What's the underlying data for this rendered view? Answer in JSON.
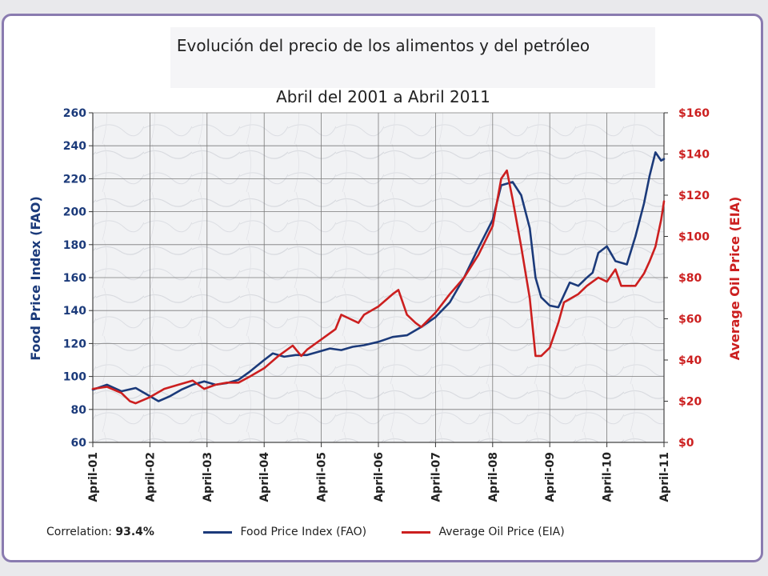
{
  "title": {
    "line1": "Evolución del precio de los alimentos y del petróleo",
    "line2": "Abril del 2001 a Abril 2011"
  },
  "colors": {
    "food": "#1b3a7a",
    "oil": "#cc1f1f",
    "grid": "#7a7a7a",
    "frame": "#8a7bb0"
  },
  "footer": {
    "correlation_label": "Correlation:",
    "correlation_value": "93.4%"
  },
  "chart_data": {
    "type": "line",
    "x_tick_labels": [
      "April-01",
      "April-02",
      "April-03",
      "April-04",
      "April-05",
      "April-06",
      "April-07",
      "April-08",
      "April-09",
      "April-10",
      "April-11"
    ],
    "x_range": [
      2001.25,
      2011.25
    ],
    "ylabel_left": "Food Price Index (FAO)",
    "ylabel_right": "Average Oil Price (EIA)",
    "ylim_left": [
      60,
      260
    ],
    "ylim_right": [
      0,
      160
    ],
    "yticks_left": [
      "60",
      "80",
      "100",
      "120",
      "140",
      "160",
      "180",
      "200",
      "220",
      "240",
      "260"
    ],
    "yticks_right": [
      "$0",
      "$20",
      "$40",
      "$60",
      "$80",
      "$100",
      "$120",
      "$140",
      "$160"
    ],
    "grid": true,
    "legend_position": "bottom",
    "series": [
      {
        "name": "Food Price Index (FAO)",
        "axis": "left",
        "points": [
          [
            2001.25,
            92
          ],
          [
            2001.5,
            95
          ],
          [
            2001.75,
            91
          ],
          [
            2002.0,
            93
          ],
          [
            2002.25,
            88
          ],
          [
            2002.4,
            85
          ],
          [
            2002.6,
            88
          ],
          [
            2002.8,
            92
          ],
          [
            2003.0,
            95
          ],
          [
            2003.2,
            97
          ],
          [
            2003.4,
            95
          ],
          [
            2003.6,
            96
          ],
          [
            2003.8,
            98
          ],
          [
            2004.0,
            103
          ],
          [
            2004.25,
            110
          ],
          [
            2004.4,
            114
          ],
          [
            2004.6,
            112
          ],
          [
            2004.8,
            113
          ],
          [
            2005.0,
            113
          ],
          [
            2005.2,
            115
          ],
          [
            2005.4,
            117
          ],
          [
            2005.6,
            116
          ],
          [
            2005.8,
            118
          ],
          [
            2006.0,
            119
          ],
          [
            2006.25,
            121
          ],
          [
            2006.5,
            124
          ],
          [
            2006.75,
            125
          ],
          [
            2007.0,
            130
          ],
          [
            2007.25,
            136
          ],
          [
            2007.5,
            145
          ],
          [
            2007.75,
            160
          ],
          [
            2008.0,
            178
          ],
          [
            2008.25,
            195
          ],
          [
            2008.4,
            216
          ],
          [
            2008.6,
            218
          ],
          [
            2008.75,
            210
          ],
          [
            2008.9,
            190
          ],
          [
            2009.0,
            160
          ],
          [
            2009.1,
            148
          ],
          [
            2009.25,
            143
          ],
          [
            2009.4,
            142
          ],
          [
            2009.6,
            157
          ],
          [
            2009.75,
            155
          ],
          [
            2009.9,
            160
          ],
          [
            2010.0,
            163
          ],
          [
            2010.1,
            175
          ],
          [
            2010.25,
            179
          ],
          [
            2010.4,
            170
          ],
          [
            2010.6,
            168
          ],
          [
            2010.75,
            185
          ],
          [
            2010.9,
            205
          ],
          [
            2011.0,
            222
          ],
          [
            2011.1,
            236
          ],
          [
            2011.2,
            231
          ],
          [
            2011.25,
            232
          ]
        ]
      },
      {
        "name": "Average Oil Price (EIA)",
        "axis": "right",
        "points": [
          [
            2001.25,
            26
          ],
          [
            2001.5,
            27
          ],
          [
            2001.75,
            24
          ],
          [
            2001.9,
            20
          ],
          [
            2002.0,
            19
          ],
          [
            2002.25,
            22
          ],
          [
            2002.5,
            26
          ],
          [
            2002.75,
            28
          ],
          [
            2003.0,
            30
          ],
          [
            2003.2,
            26
          ],
          [
            2003.4,
            28
          ],
          [
            2003.6,
            29
          ],
          [
            2003.8,
            29
          ],
          [
            2004.0,
            32
          ],
          [
            2004.25,
            36
          ],
          [
            2004.5,
            42
          ],
          [
            2004.75,
            47
          ],
          [
            2004.9,
            42
          ],
          [
            2005.0,
            45
          ],
          [
            2005.25,
            50
          ],
          [
            2005.5,
            55
          ],
          [
            2005.6,
            62
          ],
          [
            2005.75,
            60
          ],
          [
            2005.9,
            58
          ],
          [
            2006.0,
            62
          ],
          [
            2006.25,
            66
          ],
          [
            2006.5,
            72
          ],
          [
            2006.6,
            74
          ],
          [
            2006.75,
            62
          ],
          [
            2006.9,
            58
          ],
          [
            2007.0,
            56
          ],
          [
            2007.25,
            63
          ],
          [
            2007.5,
            72
          ],
          [
            2007.75,
            80
          ],
          [
            2008.0,
            91
          ],
          [
            2008.25,
            105
          ],
          [
            2008.4,
            128
          ],
          [
            2008.5,
            132
          ],
          [
            2008.6,
            118
          ],
          [
            2008.75,
            95
          ],
          [
            2008.9,
            70
          ],
          [
            2009.0,
            42
          ],
          [
            2009.1,
            42
          ],
          [
            2009.25,
            46
          ],
          [
            2009.4,
            58
          ],
          [
            2009.5,
            68
          ],
          [
            2009.75,
            72
          ],
          [
            2009.9,
            76
          ],
          [
            2010.0,
            78
          ],
          [
            2010.1,
            80
          ],
          [
            2010.25,
            78
          ],
          [
            2010.4,
            84
          ],
          [
            2010.5,
            76
          ],
          [
            2010.75,
            76
          ],
          [
            2010.9,
            82
          ],
          [
            2011.0,
            88
          ],
          [
            2011.1,
            95
          ],
          [
            2011.2,
            108
          ],
          [
            2011.25,
            117
          ]
        ]
      }
    ]
  }
}
